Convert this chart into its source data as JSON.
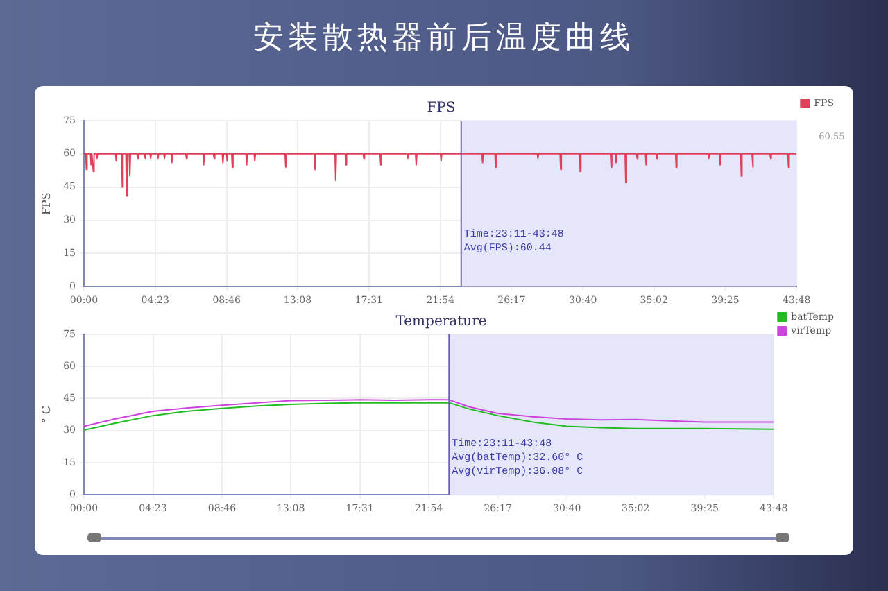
{
  "chart_data": [
    {
      "type": "line",
      "title": "安装散热器前后温度曲线",
      "subtitle": "FPS",
      "ylabel": "FPS",
      "x": [
        0,
        0.11,
        0.15,
        0.19,
        0.4,
        0.44,
        0.48,
        0.54,
        0.58,
        0.62,
        0.76,
        0.8,
        0.84,
        1.94,
        1.98,
        2.02,
        2.32,
        2.36,
        2.4,
        2.58,
        2.62,
        2.66,
        2.78,
        2.82,
        2.86,
        3.26,
        3.3,
        3.34,
        3.71,
        3.75,
        3.79,
        4.06,
        4.1,
        4.14,
        4.51,
        4.55,
        4.59,
        4.91,
        4.95,
        4.99,
        5.36,
        5.4,
        5.44,
        6.26,
        6.3,
        6.34,
        7.32,
        7.36,
        7.4,
        7.96,
        8.0,
        8.04,
        8.5,
        8.54,
        8.58,
        8.76,
        8.8,
        8.84,
        9.08,
        9.12,
        9.16,
        9.96,
        10.0,
        10.04,
        10.46,
        10.5,
        10.54,
        12.36,
        12.4,
        12.44,
        14.16,
        14.2,
        14.24,
        15.43,
        15.47,
        15.51,
        16.06,
        16.1,
        16.14,
        17.16,
        17.2,
        17.24,
        18.2,
        18.24,
        18.28,
        19.86,
        19.9,
        19.94,
        20.38,
        20.42,
        20.46,
        21.91,
        21.95,
        21.99,
        24.46,
        24.5,
        24.54,
        25.26,
        25.3,
        25.34,
        27.86,
        27.9,
        27.94,
        29.26,
        29.3,
        29.34,
        30.46,
        30.5,
        30.54,
        32.36,
        32.4,
        32.44,
        32.66,
        32.7,
        32.74,
        33.26,
        33.3,
        33.34,
        33.96,
        34.0,
        34.04,
        34.51,
        34.55,
        34.59,
        35.16,
        35.2,
        35.24,
        36.36,
        36.4,
        36.44,
        38.36,
        38.4,
        38.44,
        39.06,
        39.1,
        39.14,
        40.36,
        40.4,
        40.44,
        41.06,
        41.1,
        41.14,
        42.16,
        42.2,
        42.24,
        43.26,
        43.3,
        43.34,
        43.8
      ],
      "series": [
        {
          "name": "FPS",
          "color": "#e0405a",
          "values": [
            60,
            60,
            53,
            60,
            60,
            55,
            60,
            60,
            52,
            60,
            60,
            58,
            60,
            60,
            57,
            60,
            60,
            45,
            60,
            60,
            41,
            60,
            60,
            50,
            60,
            60,
            58,
            60,
            60,
            58,
            60,
            60,
            58,
            60,
            60,
            58,
            60,
            60,
            58,
            60,
            60,
            56,
            60,
            60,
            58,
            60,
            60,
            55,
            60,
            60,
            58,
            60,
            60,
            56,
            60,
            60,
            57,
            60,
            60,
            54,
            60,
            60,
            55,
            60,
            60,
            57,
            60,
            60,
            54,
            60,
            60,
            53,
            60,
            60,
            48,
            60,
            60,
            55,
            60,
            60,
            58,
            60,
            60,
            55,
            60,
            60,
            58,
            60,
            60,
            55,
            60,
            60,
            57,
            60,
            60,
            56,
            60,
            60,
            54,
            60,
            60,
            58,
            60,
            60,
            53,
            60,
            60,
            52,
            60,
            60,
            54,
            60,
            60,
            56,
            60,
            60,
            47,
            60,
            60,
            58,
            60,
            60,
            55,
            60,
            60,
            58,
            60,
            60,
            54,
            60,
            60,
            58,
            60,
            60,
            55,
            60,
            60,
            50,
            60,
            60,
            54,
            60,
            60,
            58,
            60,
            60,
            54,
            60,
            60
          ]
        }
      ],
      "xlim": [
        0,
        43.8
      ],
      "xticks": [
        {
          "value": 0,
          "label": "00:00"
        },
        {
          "value": 4.383,
          "label": "04:23"
        },
        {
          "value": 8.767,
          "label": "08:46"
        },
        {
          "value": 13.133,
          "label": "13:08"
        },
        {
          "value": 17.517,
          "label": "17:31"
        },
        {
          "value": 21.9,
          "label": "21:54"
        },
        {
          "value": 26.283,
          "label": "26:17"
        },
        {
          "value": 30.667,
          "label": "30:40"
        },
        {
          "value": 35.033,
          "label": "35:02"
        },
        {
          "value": 39.417,
          "label": "39:25"
        },
        {
          "value": 43.8,
          "label": "43:48"
        }
      ],
      "ylim": [
        0,
        75
      ],
      "yticks": [
        0,
        15,
        30,
        45,
        60,
        75
      ],
      "grid": true,
      "legend": "top right",
      "marker": "none",
      "bands": [
        {
          "axis": "x",
          "from": 23.183,
          "to": 43.8,
          "color": "#e6e6fa"
        }
      ],
      "ref_lines": [
        {
          "axis": "x",
          "value": 23.183,
          "color": "#6a5acd"
        }
      ],
      "annotations": [
        "Time:23:11-43:48",
        "Avg(FPS):60.44",
        {
          "text": "60.55",
          "x": 43.8,
          "y": 75
        }
      ]
    },
    {
      "type": "line",
      "title": "Temperature",
      "ylabel": "° C",
      "x": [
        0,
        2,
        4.38,
        6.5,
        8.77,
        11,
        13.13,
        15.3,
        17.52,
        19.7,
        21.9,
        23.18,
        24.5,
        26.28,
        28.5,
        30.67,
        32.8,
        35.03,
        37.2,
        39.42,
        41.6,
        43.8
      ],
      "series": [
        {
          "name": "batTemp",
          "color": "#22bb22",
          "values": [
            30.2,
            33.5,
            37,
            39,
            40.4,
            41.5,
            42.2,
            42.7,
            43,
            43,
            43,
            43,
            40,
            37,
            34,
            32,
            31.4,
            31,
            31,
            31,
            30.8,
            30.6
          ]
        },
        {
          "name": "virTemp",
          "color": "#cc44dd",
          "values": [
            32,
            35.5,
            39,
            40.5,
            41.8,
            43,
            44,
            44.2,
            44.4,
            44.2,
            44.4,
            44.4,
            41,
            38,
            36.5,
            35.4,
            35,
            35.2,
            34.5,
            34,
            34,
            34
          ]
        }
      ],
      "xlim": [
        0,
        43.8
      ],
      "xticks": [
        {
          "value": 0,
          "label": "00:00"
        },
        {
          "value": 4.383,
          "label": "04:23"
        },
        {
          "value": 8.767,
          "label": "08:46"
        },
        {
          "value": 13.133,
          "label": "13:08"
        },
        {
          "value": 17.517,
          "label": "17:31"
        },
        {
          "value": 21.9,
          "label": "21:54"
        },
        {
          "value": 26.283,
          "label": "26:17"
        },
        {
          "value": 30.667,
          "label": "30:40"
        },
        {
          "value": 35.033,
          "label": "35:02"
        },
        {
          "value": 39.417,
          "label": "39:25"
        },
        {
          "value": 43.8,
          "label": "43:48"
        }
      ],
      "ylim": [
        0,
        75
      ],
      "yticks": [
        0,
        15,
        30,
        45,
        60,
        75
      ],
      "grid": true,
      "legend": "top right",
      "marker": "none",
      "bands": [
        {
          "axis": "x",
          "from": 23.183,
          "to": 43.8,
          "color": "#e6e6fa"
        }
      ],
      "ref_lines": [
        {
          "axis": "x",
          "value": 23.183,
          "color": "#6a5acd"
        }
      ],
      "annotations": [
        "Time:23:11-43:48",
        "Avg(batTemp):32.60° C",
        "Avg(virTemp):36.08° C"
      ]
    }
  ]
}
